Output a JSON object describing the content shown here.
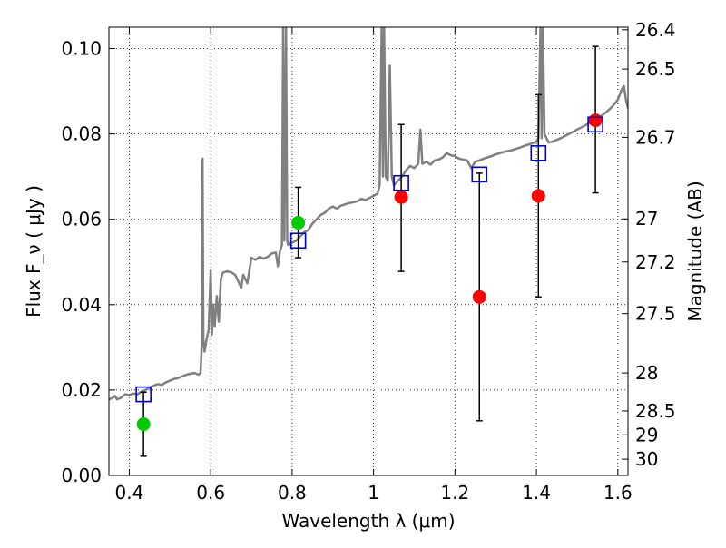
{
  "chart_data": {
    "type": "scatter",
    "xlabel": "Wavelength  λ (μm)",
    "ylabel": "Flux  F_ν  ( μJy )",
    "ylabel_right": "Magnitude (AB)",
    "xlim": [
      0.35,
      1.625
    ],
    "ylim": [
      0.0,
      0.105
    ],
    "grid": true,
    "x_ticks": [
      "0.4",
      "0.6",
      "0.8",
      "1",
      "1.2",
      "1.4",
      "1.6"
    ],
    "x_tick_values": [
      0.4,
      0.6,
      0.8,
      1.0,
      1.2,
      1.4,
      1.6
    ],
    "y_ticks": [
      "0.00",
      "0.02",
      "0.04",
      "0.06",
      "0.08",
      "0.10"
    ],
    "y_tick_values": [
      0.0,
      0.02,
      0.04,
      0.06,
      0.08,
      0.1
    ],
    "right_ticks": [
      {
        "label": "26.4",
        "flux": 0.1044
      },
      {
        "label": "26.5",
        "flux": 0.0952
      },
      {
        "label": "26.7",
        "flux": 0.0792
      },
      {
        "label": "27",
        "flux": 0.0601
      },
      {
        "label": "27.2",
        "flux": 0.05
      },
      {
        "label": "27.5",
        "flux": 0.0379
      },
      {
        "label": "28",
        "flux": 0.024
      },
      {
        "label": "28.5",
        "flux": 0.0151
      },
      {
        "label": "29",
        "flux": 0.0095
      },
      {
        "label": "30",
        "flux": 0.0038
      }
    ],
    "series": [
      {
        "type": "line",
        "color": "#808080",
        "points": [
          [
            0.35,
            0.0178
          ],
          [
            0.36,
            0.0182
          ],
          [
            0.365,
            0.0186
          ],
          [
            0.37,
            0.0178
          ],
          [
            0.38,
            0.0182
          ],
          [
            0.39,
            0.019
          ],
          [
            0.4,
            0.0188
          ],
          [
            0.41,
            0.0192
          ],
          [
            0.42,
            0.019
          ],
          [
            0.43,
            0.0196
          ],
          [
            0.44,
            0.02
          ],
          [
            0.45,
            0.0206
          ],
          [
            0.46,
            0.021
          ],
          [
            0.47,
            0.0214
          ],
          [
            0.48,
            0.0212
          ],
          [
            0.49,
            0.0218
          ],
          [
            0.5,
            0.0222
          ],
          [
            0.51,
            0.0226
          ],
          [
            0.52,
            0.0228
          ],
          [
            0.53,
            0.0232
          ],
          [
            0.54,
            0.0236
          ],
          [
            0.55,
            0.0238
          ],
          [
            0.56,
            0.024
          ],
          [
            0.57,
            0.0236
          ],
          [
            0.575,
            0.024
          ],
          [
            0.578,
            0.03
          ],
          [
            0.58,
            0.0742
          ],
          [
            0.582,
            0.032
          ],
          [
            0.585,
            0.029
          ],
          [
            0.59,
            0.032
          ],
          [
            0.595,
            0.034
          ],
          [
            0.6,
            0.048
          ],
          [
            0.603,
            0.033
          ],
          [
            0.606,
            0.04
          ],
          [
            0.61,
            0.035
          ],
          [
            0.615,
            0.042
          ],
          [
            0.62,
            0.036
          ],
          [
            0.625,
            0.046
          ],
          [
            0.63,
            0.0475
          ],
          [
            0.64,
            0.0478
          ],
          [
            0.65,
            0.0476
          ],
          [
            0.66,
            0.047
          ],
          [
            0.67,
            0.045
          ],
          [
            0.675,
            0.044
          ],
          [
            0.68,
            0.047
          ],
          [
            0.69,
            0.045
          ],
          [
            0.7,
            0.051
          ],
          [
            0.71,
            0.0505
          ],
          [
            0.72,
            0.0512
          ],
          [
            0.73,
            0.0508
          ],
          [
            0.74,
            0.0512
          ],
          [
            0.75,
            0.052
          ],
          [
            0.76,
            0.0522
          ],
          [
            0.765,
            0.049
          ],
          [
            0.77,
            0.0525
          ],
          [
            0.775,
            0.054
          ],
          [
            0.778,
            0.105
          ],
          [
            0.781,
            0.055
          ],
          [
            0.785,
            0.105
          ],
          [
            0.788,
            0.055
          ],
          [
            0.79,
            0.054
          ],
          [
            0.8,
            0.0545
          ],
          [
            0.81,
            0.055
          ],
          [
            0.82,
            0.056
          ],
          [
            0.83,
            0.057
          ],
          [
            0.84,
            0.0575
          ],
          [
            0.85,
            0.059
          ],
          [
            0.86,
            0.06
          ],
          [
            0.87,
            0.061
          ],
          [
            0.88,
            0.0615
          ],
          [
            0.89,
            0.0625
          ],
          [
            0.9,
            0.063
          ],
          [
            0.91,
            0.0625
          ],
          [
            0.92,
            0.0632
          ],
          [
            0.93,
            0.0635
          ],
          [
            0.94,
            0.0638
          ],
          [
            0.95,
            0.064
          ],
          [
            0.96,
            0.0642
          ],
          [
            0.97,
            0.0648
          ],
          [
            0.98,
            0.0645
          ],
          [
            0.99,
            0.065
          ],
          [
            1.0,
            0.0655
          ],
          [
            1.01,
            0.066
          ],
          [
            1.015,
            0.068
          ],
          [
            1.02,
            0.105
          ],
          [
            1.023,
            0.07
          ],
          [
            1.026,
            0.105
          ],
          [
            1.03,
            0.07
          ],
          [
            1.035,
            0.069
          ],
          [
            1.04,
            0.096
          ],
          [
            1.045,
            0.07
          ],
          [
            1.05,
            0.068
          ],
          [
            1.06,
            0.069
          ],
          [
            1.07,
            0.07
          ],
          [
            1.08,
            0.0715
          ],
          [
            1.09,
            0.0725
          ],
          [
            1.1,
            0.072
          ],
          [
            1.11,
            0.073
          ],
          [
            1.115,
            0.081
          ],
          [
            1.12,
            0.073
          ],
          [
            1.13,
            0.0735
          ],
          [
            1.14,
            0.0728
          ],
          [
            1.15,
            0.0738
          ],
          [
            1.16,
            0.074
          ],
          [
            1.17,
            0.0745
          ],
          [
            1.18,
            0.0755
          ],
          [
            1.19,
            0.075
          ],
          [
            1.2,
            0.0748
          ],
          [
            1.21,
            0.0742
          ],
          [
            1.22,
            0.074
          ],
          [
            1.23,
            0.0738
          ],
          [
            1.24,
            0.072
          ],
          [
            1.25,
            0.0735
          ],
          [
            1.26,
            0.0738
          ],
          [
            1.27,
            0.0742
          ],
          [
            1.28,
            0.0745
          ],
          [
            1.29,
            0.0748
          ],
          [
            1.3,
            0.0752
          ],
          [
            1.31,
            0.0755
          ],
          [
            1.32,
            0.0758
          ],
          [
            1.33,
            0.076
          ],
          [
            1.34,
            0.0762
          ],
          [
            1.35,
            0.0765
          ],
          [
            1.36,
            0.0768
          ],
          [
            1.37,
            0.0772
          ],
          [
            1.38,
            0.0775
          ],
          [
            1.39,
            0.0778
          ],
          [
            1.4,
            0.0782
          ],
          [
            1.405,
            0.079
          ],
          [
            1.41,
            0.105
          ],
          [
            1.413,
            0.079
          ],
          [
            1.416,
            0.105
          ],
          [
            1.42,
            0.08
          ],
          [
            1.43,
            0.078
          ],
          [
            1.44,
            0.0782
          ],
          [
            1.45,
            0.0786
          ],
          [
            1.46,
            0.079
          ],
          [
            1.47,
            0.0795
          ],
          [
            1.48,
            0.08
          ],
          [
            1.49,
            0.0805
          ],
          [
            1.5,
            0.081
          ],
          [
            1.51,
            0.0815
          ],
          [
            1.52,
            0.082
          ],
          [
            1.53,
            0.0826
          ],
          [
            1.54,
            0.083
          ],
          [
            1.55,
            0.0836
          ],
          [
            1.56,
            0.0842
          ],
          [
            1.57,
            0.085
          ],
          [
            1.58,
            0.0858
          ],
          [
            1.59,
            0.0868
          ],
          [
            1.6,
            0.088
          ],
          [
            1.61,
            0.0905
          ],
          [
            1.615,
            0.0912
          ],
          [
            1.62,
            0.088
          ],
          [
            1.625,
            0.086
          ]
        ]
      },
      {
        "type": "errorbar",
        "color": "#00cc00",
        "points": [
          {
            "x": 0.435,
            "y": 0.012,
            "ylo": 0.0045,
            "yhi": 0.0195
          },
          {
            "x": 0.815,
            "y": 0.0592,
            "ylo": 0.051,
            "yhi": 0.0675
          }
        ]
      },
      {
        "type": "errorbar",
        "color": "#ff0000",
        "points": [
          {
            "x": 1.068,
            "y": 0.0652,
            "ylo": 0.0478,
            "yhi": 0.0822
          },
          {
            "x": 1.26,
            "y": 0.0418,
            "ylo": 0.0128,
            "yhi": 0.0708
          },
          {
            "x": 1.405,
            "y": 0.0655,
            "ylo": 0.0418,
            "yhi": 0.0892
          },
          {
            "x": 1.545,
            "y": 0.0832,
            "ylo": 0.0662,
            "yhi": 0.1005
          }
        ]
      },
      {
        "type": "marker",
        "shape": "square",
        "color": "#0000cc",
        "points": [
          [
            0.435,
            0.019
          ],
          [
            0.815,
            0.055
          ],
          [
            1.068,
            0.0685
          ],
          [
            1.26,
            0.0705
          ],
          [
            1.405,
            0.0755
          ],
          [
            1.545,
            0.0822
          ]
        ]
      }
    ]
  }
}
